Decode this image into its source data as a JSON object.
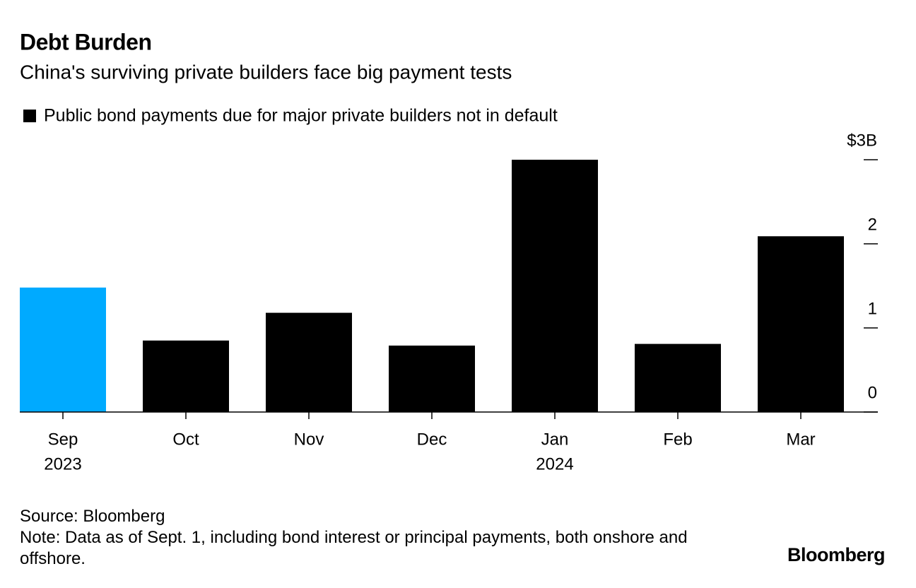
{
  "chart_data": {
    "type": "bar",
    "title": "Debt Burden",
    "subtitle": "China's surviving private builders face big payment tests",
    "categories": [
      "Sep",
      "Oct",
      "Nov",
      "Dec",
      "Jan",
      "Feb",
      "Mar"
    ],
    "years": [
      "2023",
      null,
      null,
      null,
      "2024",
      null,
      null
    ],
    "series": [
      {
        "name": "Public bond payments due for major private builders not in default",
        "color": "#000000",
        "colors": [
          "#00aaff",
          "#000000",
          "#000000",
          "#000000",
          "#000000",
          "#000000",
          "#000000"
        ],
        "values": [
          1.48,
          0.85,
          1.18,
          0.79,
          3.0,
          0.81,
          2.09
        ]
      }
    ],
    "ylim": [
      0,
      3
    ],
    "yticks": [
      0,
      1,
      2,
      {
        "value": 3,
        "label": "$3B"
      }
    ],
    "source": "Source: Bloomberg",
    "note": "Note: Data as of Sept. 1, including bond interest or principal payments, both onshore and offshore.",
    "logo": "Bloomberg"
  }
}
